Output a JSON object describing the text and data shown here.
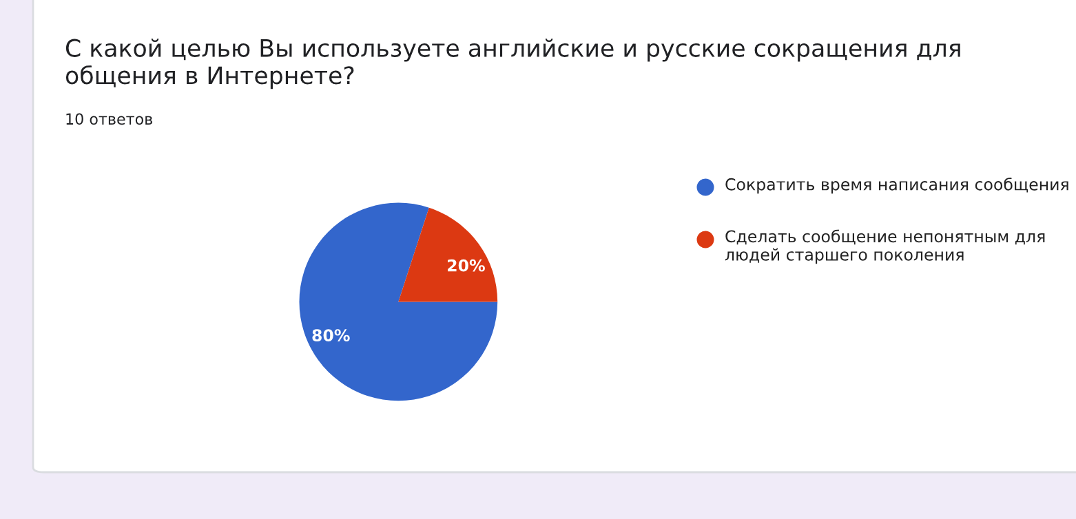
{
  "chart_data": {
    "type": "pie",
    "title": "С какой целью Вы используете английские и русские сокращения для общения в Интернете?",
    "subtitle": "10 ответов",
    "categories": [
      "Сократить время написания сообщения",
      "Сделать сообщение непонятным для людей старшего поколения"
    ],
    "values": [
      80,
      20
    ],
    "colors": [
      "#3366cc",
      "#dc3912"
    ],
    "value_labels": [
      "80%",
      "20%"
    ],
    "legend": "right"
  }
}
